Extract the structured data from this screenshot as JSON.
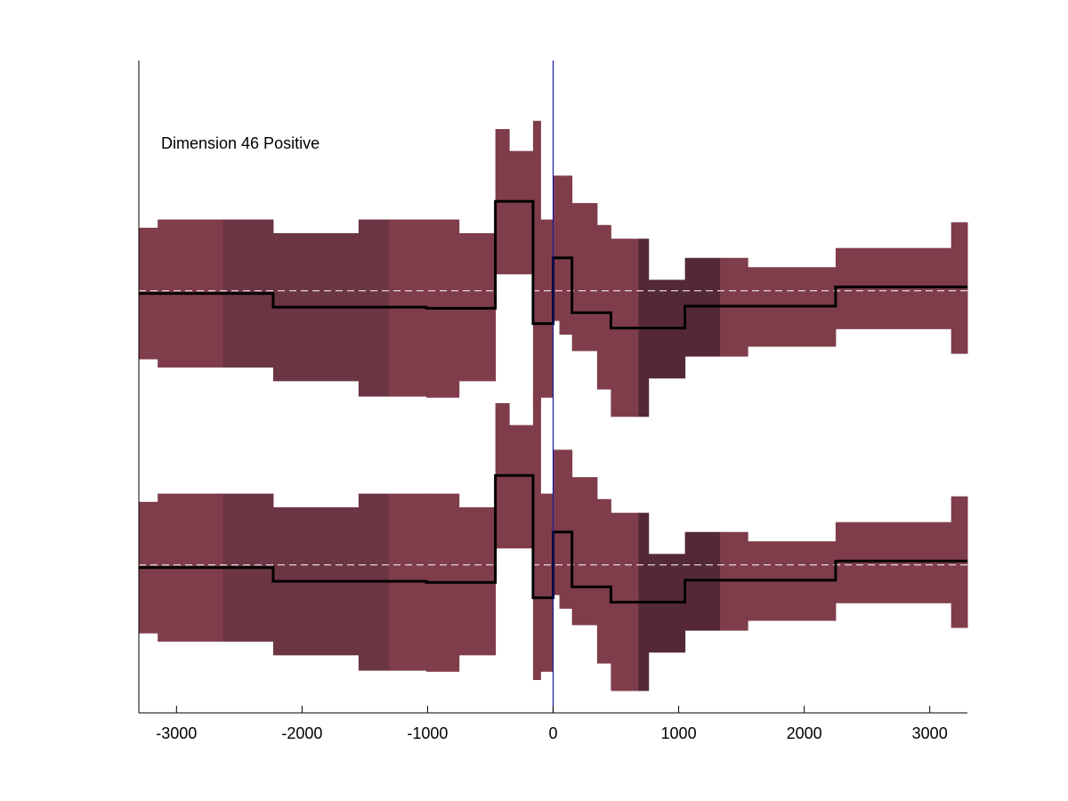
{
  "chart_data": {
    "type": "area",
    "title": "",
    "xlabel": "",
    "ylabel": "",
    "xlim": [
      -3300,
      3300
    ],
    "ylim": [
      -7.7,
      4.2
    ],
    "grid": false,
    "annotation": "Dimension 46 Positive",
    "xticks": [
      -3000,
      -2000,
      -1000,
      0,
      1000,
      2000,
      3000
    ],
    "xtick_labels": [
      "-3000",
      "-2000",
      "-1000",
      "0",
      "1000",
      "2000",
      "3000"
    ],
    "zero_line_x": 0,
    "colors": {
      "band_light": "#7f3d4b",
      "band_mid": "#6b3544",
      "band_dark": "#542839",
      "mean_line": "#000000",
      "baseline": "#ffffff",
      "zero_line": "#1a1aa0",
      "axis": "#000000"
    },
    "series": [
      {
        "baseline": 0,
        "bins": [
          {
            "x0": -3300,
            "x1": -3150,
            "lo": -1.25,
            "hi": 1.15,
            "mean": -0.05,
            "shade": "light"
          },
          {
            "x0": -3150,
            "x1": -2630,
            "lo": -1.4,
            "hi": 1.3,
            "mean": -0.05,
            "shade": "light"
          },
          {
            "x0": -2630,
            "x1": -2230,
            "lo": -1.4,
            "hi": 1.3,
            "mean": -0.05,
            "shade": "mid"
          },
          {
            "x0": -2230,
            "x1": -1550,
            "lo": -1.65,
            "hi": 1.05,
            "mean": -0.3,
            "shade": "mid"
          },
          {
            "x0": -1550,
            "x1": -1310,
            "lo": -1.93,
            "hi": 1.3,
            "mean": -0.3,
            "shade": "mid"
          },
          {
            "x0": -1310,
            "x1": -1010,
            "lo": -1.93,
            "hi": 1.3,
            "mean": -0.3,
            "shade": "light"
          },
          {
            "x0": -1010,
            "x1": -750,
            "lo": -1.95,
            "hi": 1.3,
            "mean": -0.32,
            "shade": "light"
          },
          {
            "x0": -750,
            "x1": -460,
            "lo": -1.65,
            "hi": 1.05,
            "mean": -0.32,
            "shade": "light"
          },
          {
            "x0": -460,
            "x1": -350,
            "lo": 0.3,
            "hi": 2.95,
            "mean": 1.63,
            "shade": "light"
          },
          {
            "x0": -350,
            "x1": -160,
            "lo": 0.3,
            "hi": 2.55,
            "mean": 1.63,
            "shade": "light"
          },
          {
            "x0": -160,
            "x1": -100,
            "lo": -2.1,
            "hi": 3.1,
            "mean": -0.6,
            "shade": "light"
          },
          {
            "x0": -100,
            "x1": 0,
            "lo": -1.95,
            "hi": 1.3,
            "mean": -0.6,
            "shade": "light"
          },
          {
            "x0": 0,
            "x1": 50,
            "lo": -0.55,
            "hi": 2.1,
            "mean": 0.6,
            "shade": "light"
          },
          {
            "x0": 50,
            "x1": 150,
            "lo": -0.8,
            "hi": 2.1,
            "mean": 0.6,
            "shade": "light"
          },
          {
            "x0": 150,
            "x1": 350,
            "lo": -1.1,
            "hi": 1.6,
            "mean": -0.4,
            "shade": "light"
          },
          {
            "x0": 350,
            "x1": 460,
            "lo": -1.8,
            "hi": 1.2,
            "mean": -0.4,
            "shade": "light"
          },
          {
            "x0": 460,
            "x1": 680,
            "lo": -2.3,
            "hi": 0.95,
            "mean": -0.68,
            "shade": "light"
          },
          {
            "x0": 680,
            "x1": 760,
            "lo": -2.3,
            "hi": 0.95,
            "mean": -0.68,
            "shade": "dark"
          },
          {
            "x0": 760,
            "x1": 1050,
            "lo": -1.6,
            "hi": 0.2,
            "mean": -0.68,
            "shade": "dark"
          },
          {
            "x0": 1050,
            "x1": 1330,
            "lo": -1.2,
            "hi": 0.6,
            "mean": -0.28,
            "shade": "dark"
          },
          {
            "x0": 1330,
            "x1": 1550,
            "lo": -1.2,
            "hi": 0.6,
            "mean": -0.28,
            "shade": "light"
          },
          {
            "x0": 1550,
            "x1": 2250,
            "lo": -1.02,
            "hi": 0.43,
            "mean": -0.28,
            "shade": "light"
          },
          {
            "x0": 2250,
            "x1": 3170,
            "lo": -0.7,
            "hi": 0.78,
            "mean": 0.07,
            "shade": "light"
          },
          {
            "x0": 3170,
            "x1": 3300,
            "lo": -1.15,
            "hi": 1.25,
            "mean": 0.07,
            "shade": "light"
          }
        ]
      },
      {
        "baseline": -5,
        "bins": [
          {
            "x0": -3300,
            "x1": -3150,
            "lo": -6.25,
            "hi": -3.85,
            "mean": -5.05,
            "shade": "light"
          },
          {
            "x0": -3150,
            "x1": -2630,
            "lo": -6.4,
            "hi": -3.7,
            "mean": -5.05,
            "shade": "light"
          },
          {
            "x0": -2630,
            "x1": -2230,
            "lo": -6.4,
            "hi": -3.7,
            "mean": -5.05,
            "shade": "mid"
          },
          {
            "x0": -2230,
            "x1": -1550,
            "lo": -6.65,
            "hi": -3.95,
            "mean": -5.3,
            "shade": "mid"
          },
          {
            "x0": -1550,
            "x1": -1310,
            "lo": -6.93,
            "hi": -3.7,
            "mean": -5.3,
            "shade": "mid"
          },
          {
            "x0": -1310,
            "x1": -1010,
            "lo": -6.93,
            "hi": -3.7,
            "mean": -5.3,
            "shade": "light"
          },
          {
            "x0": -1010,
            "x1": -750,
            "lo": -6.95,
            "hi": -3.7,
            "mean": -5.32,
            "shade": "light"
          },
          {
            "x0": -750,
            "x1": -460,
            "lo": -6.65,
            "hi": -3.95,
            "mean": -5.32,
            "shade": "light"
          },
          {
            "x0": -460,
            "x1": -350,
            "lo": -4.7,
            "hi": -2.05,
            "mean": -3.37,
            "shade": "light"
          },
          {
            "x0": -350,
            "x1": -160,
            "lo": -4.7,
            "hi": -2.45,
            "mean": -3.37,
            "shade": "light"
          },
          {
            "x0": -160,
            "x1": -100,
            "lo": -7.1,
            "hi": -1.9,
            "mean": -5.6,
            "shade": "light"
          },
          {
            "x0": -100,
            "x1": 0,
            "lo": -6.95,
            "hi": -3.7,
            "mean": -5.6,
            "shade": "light"
          },
          {
            "x0": 0,
            "x1": 50,
            "lo": -5.55,
            "hi": -2.9,
            "mean": -4.4,
            "shade": "light"
          },
          {
            "x0": 50,
            "x1": 150,
            "lo": -5.8,
            "hi": -2.9,
            "mean": -4.4,
            "shade": "light"
          },
          {
            "x0": 150,
            "x1": 350,
            "lo": -6.1,
            "hi": -3.4,
            "mean": -5.4,
            "shade": "light"
          },
          {
            "x0": 350,
            "x1": 460,
            "lo": -6.8,
            "hi": -3.8,
            "mean": -5.4,
            "shade": "light"
          },
          {
            "x0": 460,
            "x1": 680,
            "lo": -7.3,
            "hi": -4.05,
            "mean": -5.68,
            "shade": "light"
          },
          {
            "x0": 680,
            "x1": 760,
            "lo": -7.3,
            "hi": -4.05,
            "mean": -5.68,
            "shade": "dark"
          },
          {
            "x0": 760,
            "x1": 1050,
            "lo": -6.6,
            "hi": -4.8,
            "mean": -5.68,
            "shade": "dark"
          },
          {
            "x0": 1050,
            "x1": 1330,
            "lo": -6.2,
            "hi": -4.4,
            "mean": -5.28,
            "shade": "dark"
          },
          {
            "x0": 1330,
            "x1": 1550,
            "lo": -6.2,
            "hi": -4.4,
            "mean": -5.28,
            "shade": "light"
          },
          {
            "x0": 1550,
            "x1": 2250,
            "lo": -6.02,
            "hi": -4.57,
            "mean": -5.28,
            "shade": "light"
          },
          {
            "x0": 2250,
            "x1": 3170,
            "lo": -5.7,
            "hi": -4.22,
            "mean": -4.93,
            "shade": "light"
          },
          {
            "x0": 3170,
            "x1": 3300,
            "lo": -6.15,
            "hi": -3.75,
            "mean": -4.93,
            "shade": "light"
          }
        ]
      }
    ]
  }
}
